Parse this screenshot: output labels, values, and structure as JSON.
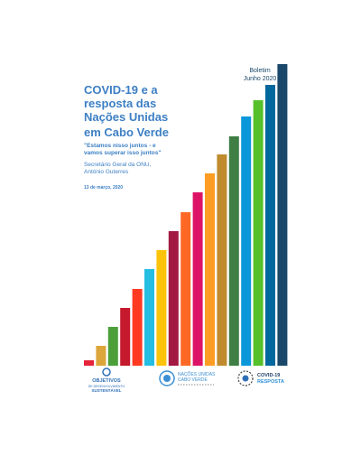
{
  "cover": {
    "edition": [
      "Boletim",
      "Junho 2020"
    ],
    "title": [
      "COVID-19 e a",
      "resposta das",
      "Nações Unidas",
      "em Cabo Verde"
    ],
    "quote": [
      "\"Estamos nisso juntos - e",
      "vamos superar isso juntos\""
    ],
    "author": [
      "Secretário Geral da ONU,",
      "António Guterres"
    ],
    "date": "13 de março, 2020"
  },
  "footer": {
    "sdg_logo": [
      "OBJETIVOS",
      "DE DESENVOLVIMENTO",
      "SUSTENTÁVEL"
    ],
    "un_logo": [
      "NAÇÕES UNIDAS",
      "CABO VERDE"
    ],
    "covid_logo": [
      "COVID-19",
      "RESPOSTA"
    ]
  }
}
